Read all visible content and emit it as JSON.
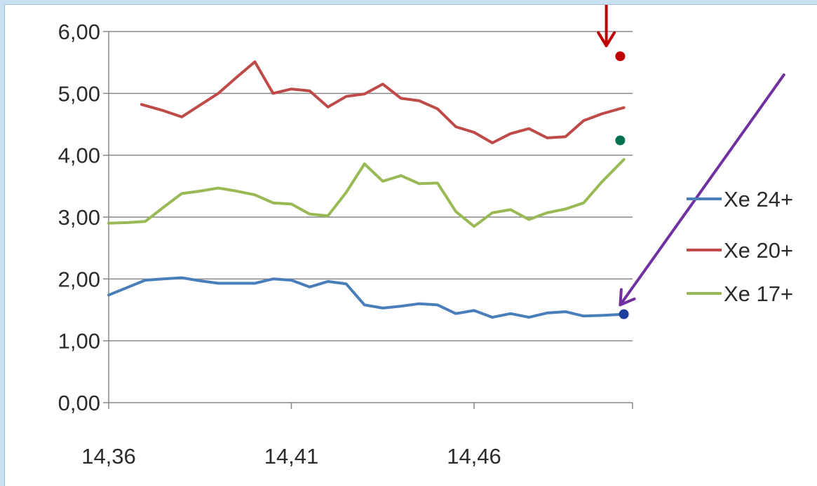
{
  "chart_data": {
    "type": "line",
    "title": "",
    "xlabel": "",
    "ylabel": "",
    "xlim": [
      14.36,
      14.501
    ],
    "ylim": [
      0,
      6
    ],
    "grid": true,
    "legend_position": "right",
    "y_ticks": [
      "0,00",
      "1,00",
      "2,00",
      "3,00",
      "4,00",
      "5,00",
      "6,00"
    ],
    "x_ticks": [
      "14,36",
      "14,41",
      "14,46"
    ],
    "x_tick_values": [
      14.36,
      14.41,
      14.46
    ],
    "series": [
      {
        "name": "Xe 24+",
        "color": "#4a7ebb",
        "x": [
          14.36,
          14.365,
          14.37,
          14.375,
          14.38,
          14.385,
          14.39,
          14.395,
          14.4,
          14.405,
          14.41,
          14.415,
          14.42,
          14.425,
          14.43,
          14.435,
          14.44,
          14.445,
          14.45,
          14.455,
          14.46,
          14.465,
          14.47,
          14.475,
          14.48,
          14.485,
          14.49,
          14.495,
          14.501
        ],
        "y": [
          1.74,
          1.86,
          1.98,
          2.0,
          2.02,
          1.97,
          1.93,
          1.93,
          1.93,
          2.0,
          1.98,
          1.87,
          1.96,
          1.92,
          1.58,
          1.53,
          1.56,
          1.6,
          1.58,
          1.44,
          1.49,
          1.38,
          1.44,
          1.38,
          1.45,
          1.47,
          1.4,
          1.41,
          1.43
        ]
      },
      {
        "name": "Xe 20+",
        "color": "#be4b48",
        "x": [
          14.369,
          14.375,
          14.38,
          14.385,
          14.39,
          14.395,
          14.4,
          14.405,
          14.41,
          14.415,
          14.42,
          14.425,
          14.43,
          14.435,
          14.44,
          14.445,
          14.45,
          14.455,
          14.46,
          14.465,
          14.47,
          14.475,
          14.48,
          14.485,
          14.49,
          14.495,
          14.501
        ],
        "y": [
          4.82,
          4.72,
          4.62,
          4.81,
          5.0,
          5.26,
          5.51,
          5.0,
          5.07,
          5.04,
          4.78,
          4.95,
          4.99,
          5.15,
          4.92,
          4.88,
          4.75,
          4.46,
          4.37,
          4.2,
          4.35,
          4.43,
          4.28,
          4.3,
          4.56,
          4.67,
          4.77
        ]
      },
      {
        "name": "Xe 17+",
        "color": "#98b954",
        "x": [
          14.36,
          14.365,
          14.37,
          14.375,
          14.38,
          14.385,
          14.39,
          14.395,
          14.4,
          14.405,
          14.41,
          14.415,
          14.42,
          14.425,
          14.43,
          14.435,
          14.44,
          14.445,
          14.45,
          14.455,
          14.46,
          14.465,
          14.47,
          14.475,
          14.48,
          14.485,
          14.49,
          14.495,
          14.501
        ],
        "y": [
          2.9,
          2.91,
          2.93,
          3.16,
          3.38,
          3.42,
          3.47,
          3.42,
          3.36,
          3.23,
          3.21,
          3.05,
          3.02,
          3.4,
          3.86,
          3.58,
          3.67,
          3.54,
          3.55,
          3.09,
          2.85,
          3.07,
          3.12,
          2.96,
          3.07,
          3.13,
          3.23,
          3.57,
          3.93
        ]
      }
    ],
    "markers": [
      {
        "x": 14.5,
        "y": 5.6,
        "color": "#c00000"
      },
      {
        "x": 14.5,
        "y": 4.24,
        "color": "#007050"
      },
      {
        "x": 14.501,
        "y": 1.43,
        "color": "#1f3f9f"
      }
    ],
    "arrows": [
      {
        "color": "#c00000",
        "from": [
          14.4962,
          6.5
        ],
        "to": [
          14.4962,
          5.77
        ]
      },
      {
        "color": "#7030a0",
        "from": [
          14.5448,
          5.3
        ],
        "to": [
          14.5,
          1.58
        ]
      }
    ]
  }
}
